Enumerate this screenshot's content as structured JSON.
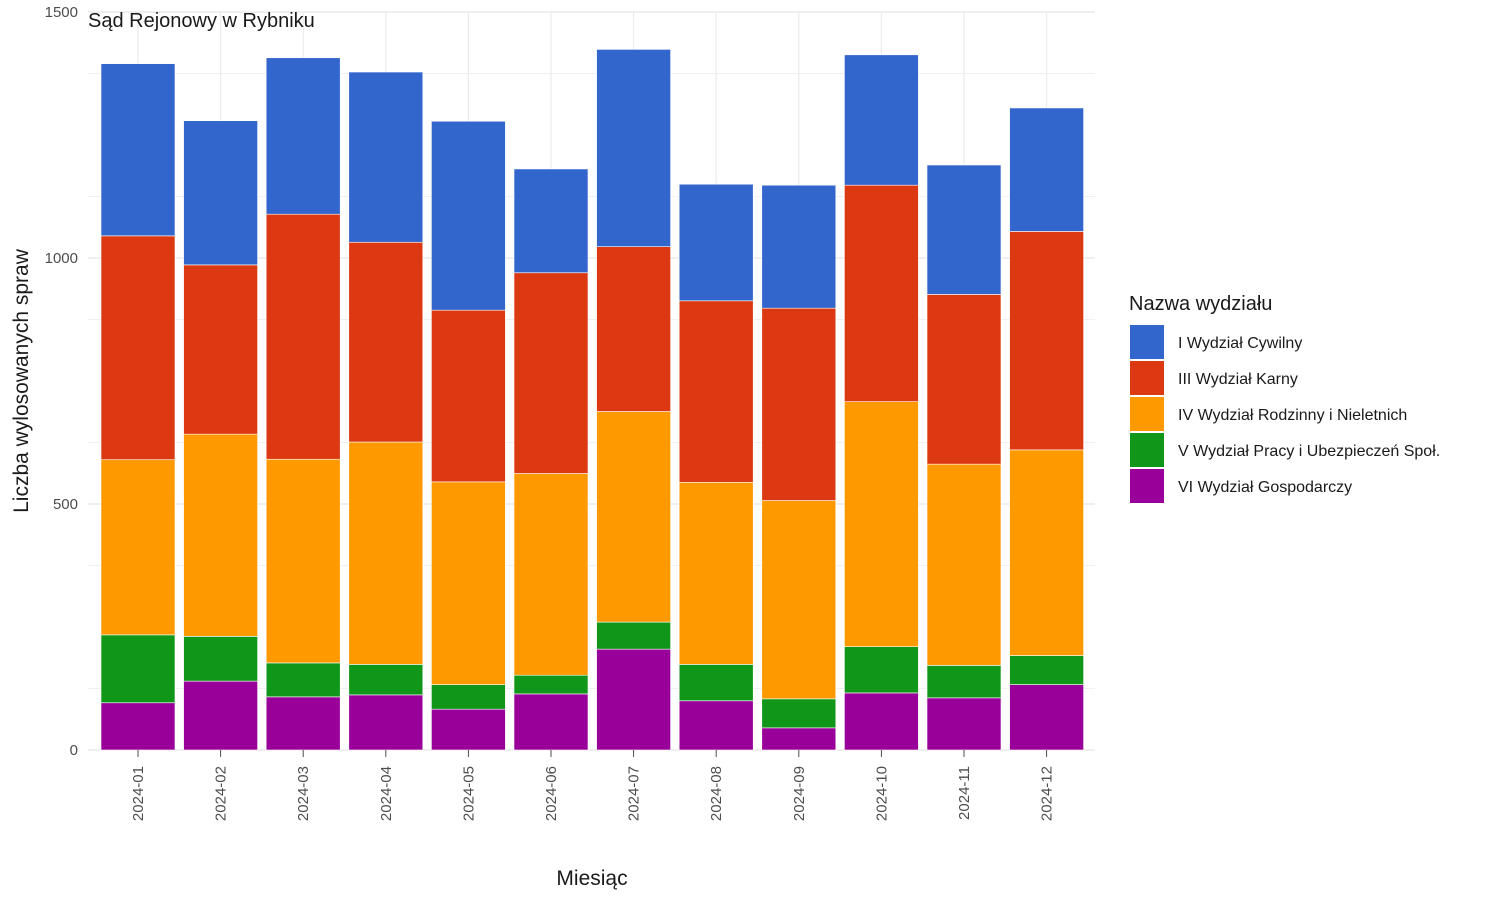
{
  "chart_data": {
    "type": "bar",
    "stacked": true,
    "title": "Sąd Rejonowy w Rybniku",
    "xlabel": "Miesiąc",
    "ylabel": "Liczba wylosowanych spraw",
    "ylim": [
      0,
      1500
    ],
    "yticks": [
      0,
      500,
      1000,
      1500
    ],
    "grid": true,
    "legend_title": "Nazwa wydziału",
    "legend_position": "right",
    "categories": [
      "2024-01",
      "2024-02",
      "2024-03",
      "2024-04",
      "2024-05",
      "2024-06",
      "2024-07",
      "2024-08",
      "2024-09",
      "2024-10",
      "2024-11",
      "2024-12"
    ],
    "series": [
      {
        "name": "VI Wydział Gospodarczy",
        "color": "#990099",
        "values": [
          96,
          140,
          108,
          112,
          83,
          114,
          205,
          100,
          45,
          116,
          106,
          133
        ]
      },
      {
        "name": "V Wydział Pracy i Ubezpieczeń Społ.",
        "color": "#109618",
        "values": [
          138,
          91,
          69,
          62,
          50,
          38,
          55,
          74,
          59,
          94,
          66,
          59
        ]
      },
      {
        "name": "IV Wydział Rodzinny i Nieletnich",
        "color": "#FF9900",
        "values": [
          356,
          411,
          414,
          452,
          412,
          410,
          428,
          370,
          403,
          498,
          409,
          418
        ]
      },
      {
        "name": "III Wydział Karny",
        "color": "#DC3912",
        "values": [
          455,
          344,
          498,
          406,
          349,
          408,
          335,
          369,
          391,
          440,
          345,
          444
        ]
      },
      {
        "name": "I Wydział Cywilny",
        "color": "#3366CC",
        "values": [
          350,
          293,
          318,
          346,
          384,
          211,
          401,
          237,
          250,
          265,
          263,
          251
        ]
      }
    ],
    "legend_order": [
      "I Wydział Cywilny",
      "III Wydział Karny",
      "IV Wydział Rodzinny i Nieletnich",
      "V Wydział Pracy i Ubezpieczeń Społ.",
      "VI Wydział Gospodarczy"
    ]
  }
}
